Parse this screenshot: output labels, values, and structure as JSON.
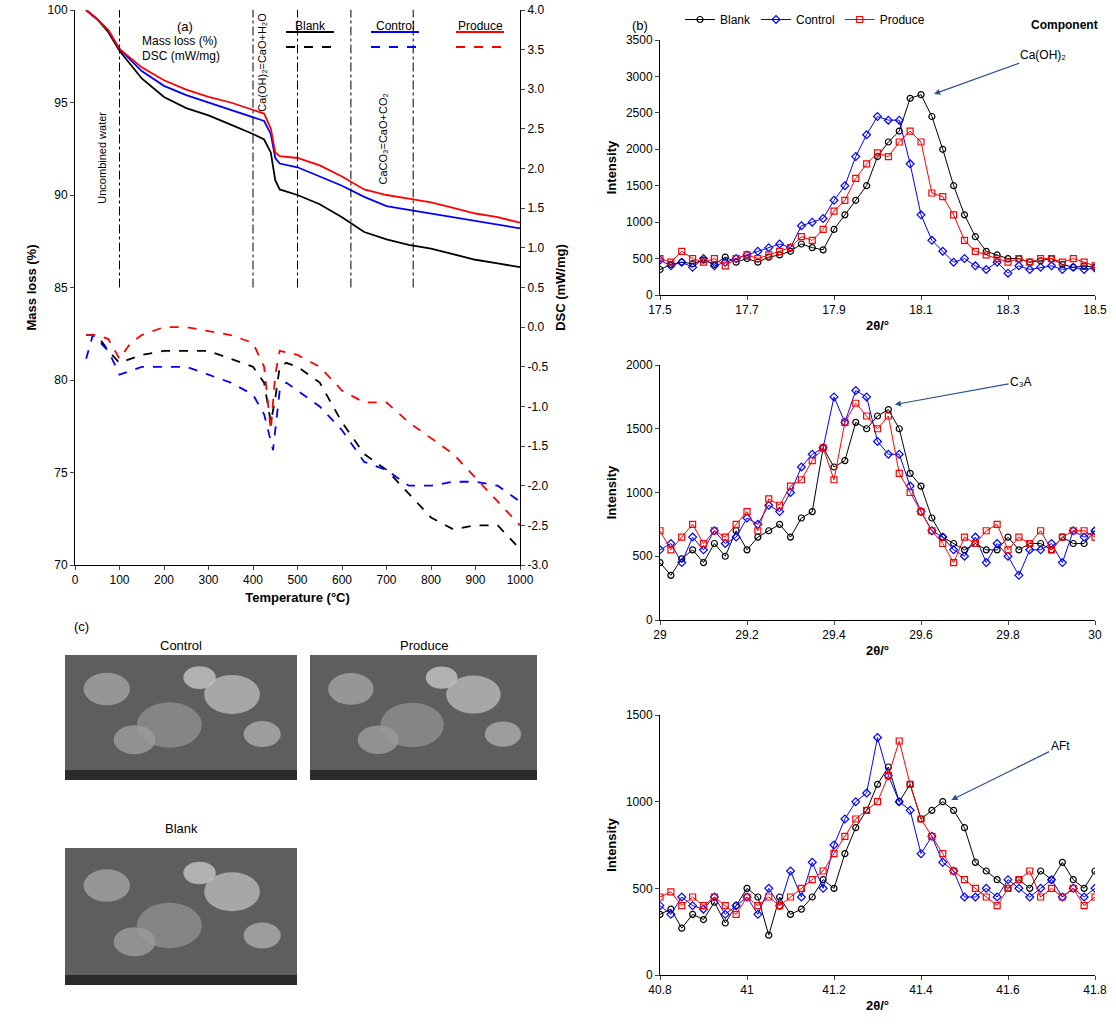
{
  "chart_data": [
    {
      "panel": "(a)",
      "type": "line",
      "xlabel": "Temperature (°C)",
      "ylabel": "Mass loss (%)",
      "y2label": "DSC (mW/mg)",
      "xlim": [
        0,
        1000
      ],
      "xticks": [
        0,
        100,
        200,
        300,
        400,
        500,
        600,
        700,
        800,
        900,
        1000
      ],
      "ylim": [
        70,
        100
      ],
      "yticks": [
        70,
        75,
        80,
        85,
        90,
        95,
        100
      ],
      "y2lim": [
        -3,
        4
      ],
      "y2ticks": [
        {
          "value": -3,
          "label": "-3.0"
        },
        -2.5,
        {
          "value": -2,
          "label": "-2.0"
        },
        -1.5,
        {
          "value": -1,
          "label": "-1.0"
        },
        -0.5,
        {
          "value": 0,
          "label": "0.0"
        },
        0.5,
        {
          "value": 1,
          "label": "1.0"
        },
        1.5,
        {
          "value": 2,
          "label": "2.0"
        },
        2.5,
        {
          "value": 3,
          "label": "3.0"
        },
        3.5,
        {
          "value": 4,
          "label": "4.0"
        }
      ],
      "grid": false,
      "legend_table": {
        "columns": [
          "Blank",
          "Control",
          "Produce"
        ],
        "rows": [
          "Mass loss (%)",
          "DSC (mW/mg)"
        ]
      },
      "vlines": [
        100,
        400,
        500,
        620,
        760
      ],
      "annotations": [
        {
          "text": "Uncombined water",
          "x": 60,
          "y": 92
        },
        {
          "text": "Ca(OH)₂=CaO+H₂O",
          "x": 420,
          "y": 97.2
        },
        {
          "text": "CaCO₃=CaO+CO₂",
          "x": 690,
          "y": 93
        }
      ],
      "series": [
        {
          "name": "Blank",
          "color": "#000000",
          "line_style": "solid",
          "x": [
            25,
            50,
            75,
            100,
            150,
            200,
            250,
            300,
            350,
            400,
            425,
            440,
            450,
            460,
            500,
            550,
            600,
            650,
            700,
            750,
            800,
            850,
            900,
            950,
            1000
          ],
          "values": [
            100,
            99.5,
            98.8,
            97.8,
            96.3,
            95.3,
            94.7,
            94.3,
            93.8,
            93.3,
            93.0,
            92.3,
            90.8,
            90.3,
            90.0,
            89.5,
            88.8,
            88.0,
            87.6,
            87.3,
            87.1,
            86.8,
            86.5,
            86.3,
            86.1
          ]
        },
        {
          "name": "Control",
          "color": "#0000ff",
          "line_style": "solid",
          "x": [
            25,
            50,
            75,
            100,
            150,
            200,
            250,
            300,
            350,
            400,
            425,
            440,
            450,
            460,
            500,
            550,
            600,
            650,
            700,
            750,
            800,
            850,
            900,
            950,
            1000
          ],
          "values": [
            100,
            99.5,
            98.9,
            97.9,
            96.7,
            95.9,
            95.4,
            95.0,
            94.6,
            94.2,
            94.0,
            93.3,
            92.0,
            91.7,
            91.5,
            91.0,
            90.5,
            89.9,
            89.4,
            89.2,
            89.0,
            88.8,
            88.6,
            88.4,
            88.2
          ]
        },
        {
          "name": "Produce",
          "color": "#ff0000",
          "line_style": "solid",
          "x": [
            25,
            50,
            75,
            100,
            150,
            200,
            250,
            300,
            350,
            400,
            425,
            440,
            450,
            460,
            500,
            550,
            600,
            650,
            700,
            750,
            800,
            850,
            900,
            950,
            1000
          ],
          "values": [
            100,
            99.5,
            98.9,
            97.9,
            96.9,
            96.2,
            95.7,
            95.3,
            95.0,
            94.6,
            94.4,
            93.6,
            92.3,
            92.1,
            92.0,
            91.6,
            91.0,
            90.3,
            90.0,
            89.8,
            89.6,
            89.3,
            89.0,
            88.8,
            88.5
          ]
        },
        {
          "name": "Blank",
          "color": "#000000",
          "line_style": "dashed",
          "axis": "y2",
          "x": [
            25,
            50,
            75,
            100,
            150,
            200,
            250,
            300,
            350,
            400,
            425,
            440,
            450,
            460,
            475,
            500,
            550,
            600,
            650,
            700,
            750,
            800,
            850,
            900,
            950,
            1000
          ],
          "values": [
            -0.1,
            -0.1,
            -0.3,
            -0.45,
            -0.35,
            -0.3,
            -0.3,
            -0.3,
            -0.4,
            -0.5,
            -0.7,
            -1.2,
            -0.9,
            -0.5,
            -0.45,
            -0.5,
            -0.7,
            -1.2,
            -1.6,
            -1.8,
            -2.1,
            -2.4,
            -2.55,
            -2.5,
            -2.5,
            -2.8
          ]
        },
        {
          "name": "Control",
          "color": "#0000ff",
          "line_style": "dashed",
          "axis": "y2",
          "x": [
            25,
            40,
            75,
            100,
            150,
            200,
            250,
            300,
            350,
            400,
            425,
            445,
            460,
            475,
            500,
            550,
            600,
            650,
            700,
            750,
            800,
            850,
            900,
            950,
            1000
          ],
          "values": [
            -0.4,
            -0.1,
            -0.3,
            -0.6,
            -0.5,
            -0.5,
            -0.5,
            -0.6,
            -0.7,
            -0.85,
            -1.1,
            -1.55,
            -0.8,
            -0.7,
            -0.8,
            -1.0,
            -1.3,
            -1.7,
            -1.8,
            -2.0,
            -2.0,
            -1.95,
            -1.95,
            -2.0,
            -2.2
          ]
        },
        {
          "name": "Produce",
          "color": "#ff0000",
          "line_style": "dashed",
          "axis": "y2",
          "x": [
            25,
            50,
            75,
            100,
            125,
            150,
            200,
            250,
            300,
            350,
            400,
            425,
            440,
            450,
            460,
            500,
            550,
            600,
            650,
            700,
            750,
            800,
            850,
            900,
            950,
            1000
          ],
          "values": [
            -0.1,
            -0.1,
            -0.15,
            -0.4,
            -0.2,
            -0.1,
            0.0,
            0.0,
            -0.05,
            -0.1,
            -0.2,
            -0.5,
            -1.3,
            -0.6,
            -0.3,
            -0.35,
            -0.5,
            -0.8,
            -0.95,
            -0.95,
            -1.2,
            -1.4,
            -1.6,
            -1.9,
            -2.2,
            -2.5
          ]
        }
      ]
    },
    {
      "panel": "(b)",
      "type": "line",
      "legend": "top",
      "legend_title": "Component",
      "xlabel": "2θ/°",
      "ylabel": "Intensity",
      "grid": false,
      "xlim": [
        17.5,
        18.5
      ],
      "xticks": [
        17.5,
        17.7,
        17.9,
        18.1,
        18.3,
        18.5
      ],
      "ylim": [
        0,
        3500
      ],
      "yticks": [
        0,
        500,
        1000,
        1500,
        2000,
        2500,
        3000,
        3500
      ],
      "peak_label": {
        "text": "Ca(OH)₂",
        "x": 18.38,
        "y": 3300,
        "arrow_x": 18.13,
        "arrow_y": 2760
      },
      "x": [
        17.5,
        17.525,
        17.55,
        17.575,
        17.6,
        17.625,
        17.65,
        17.675,
        17.7,
        17.725,
        17.75,
        17.775,
        17.8,
        17.825,
        17.85,
        17.875,
        17.9,
        17.925,
        17.95,
        17.975,
        18,
        18.025,
        18.05,
        18.075,
        18.1,
        18.125,
        18.15,
        18.175,
        18.2,
        18.225,
        18.25,
        18.275,
        18.3,
        18.325,
        18.35,
        18.375,
        18.4,
        18.425,
        18.45,
        18.475,
        18.5
      ],
      "series": [
        {
          "name": "Blank",
          "color": "#000000",
          "marker": "circle",
          "values": [
            350,
            420,
            450,
            430,
            480,
            420,
            520,
            450,
            500,
            450,
            520,
            550,
            600,
            700,
            650,
            620,
            900,
            1100,
            1300,
            1500,
            1900,
            2100,
            2250,
            2700,
            2750,
            2450,
            2000,
            1500,
            1100,
            800,
            600,
            550,
            500,
            500,
            450,
            470,
            500,
            420,
            380,
            400,
            380
          ]
        },
        {
          "name": "Control",
          "color": "#0000ff",
          "marker": "diamond",
          "values": [
            480,
            400,
            450,
            380,
            500,
            400,
            450,
            500,
            550,
            600,
            650,
            700,
            650,
            950,
            1000,
            1050,
            1300,
            1500,
            1900,
            2200,
            2450,
            2400,
            2400,
            1800,
            1100,
            750,
            600,
            450,
            500,
            400,
            350,
            450,
            300,
            400,
            350,
            380,
            400,
            350,
            380,
            350,
            370
          ]
        },
        {
          "name": "Produce",
          "color": "#ff0000",
          "marker": "square",
          "values": [
            500,
            450,
            600,
            500,
            450,
            500,
            400,
            500,
            550,
            500,
            550,
            600,
            650,
            800,
            750,
            900,
            1150,
            1300,
            1600,
            1800,
            1950,
            1900,
            2100,
            2250,
            2100,
            1400,
            1350,
            1100,
            750,
            600,
            550,
            500,
            450,
            500,
            450,
            500,
            500,
            450,
            500,
            450,
            400
          ]
        }
      ]
    },
    {
      "type": "line",
      "xlabel": "2θ/°",
      "ylabel": "Intensity",
      "grid": false,
      "xlim": [
        29,
        30
      ],
      "xticks": [
        29,
        29.2,
        29.4,
        29.6,
        29.8,
        30
      ],
      "ylim": [
        0,
        2000
      ],
      "yticks": [
        0,
        500,
        1000,
        1500,
        2000
      ],
      "peak_label": {
        "text": "C₃A",
        "x": 29.83,
        "y": 1870,
        "arrow_x": 29.54,
        "arrow_y": 1690
      },
      "x": [
        29,
        29.025,
        29.05,
        29.075,
        29.1,
        29.125,
        29.15,
        29.175,
        29.2,
        29.225,
        29.25,
        29.275,
        29.3,
        29.325,
        29.35,
        29.375,
        29.4,
        29.425,
        29.45,
        29.475,
        29.5,
        29.525,
        29.55,
        29.575,
        29.6,
        29.625,
        29.65,
        29.675,
        29.7,
        29.725,
        29.75,
        29.775,
        29.8,
        29.825,
        29.85,
        29.875,
        29.9,
        29.925,
        29.95,
        29.975,
        30
      ],
      "series": [
        {
          "name": "Blank",
          "color": "#000000",
          "marker": "circle",
          "values": [
            450,
            350,
            480,
            550,
            450,
            600,
            500,
            700,
            550,
            650,
            700,
            750,
            650,
            800,
            850,
            1350,
            1200,
            1250,
            1550,
            1500,
            1600,
            1650,
            1500,
            1150,
            1050,
            800,
            650,
            600,
            550,
            600,
            550,
            550,
            650,
            550,
            600,
            600,
            550,
            650,
            600,
            600,
            700
          ]
        },
        {
          "name": "Control",
          "color": "#0000ff",
          "marker": "diamond",
          "values": [
            550,
            600,
            450,
            650,
            550,
            700,
            600,
            650,
            800,
            750,
            900,
            850,
            1000,
            1200,
            1300,
            1350,
            1750,
            1550,
            1800,
            1750,
            1400,
            1300,
            1300,
            1050,
            850,
            700,
            650,
            550,
            500,
            650,
            450,
            600,
            500,
            350,
            550,
            550,
            600,
            450,
            700,
            650,
            700
          ]
        },
        {
          "name": "Produce",
          "color": "#ff0000",
          "marker": "square",
          "values": [
            700,
            550,
            650,
            750,
            600,
            700,
            650,
            750,
            850,
            700,
            950,
            900,
            1050,
            1100,
            1250,
            1350,
            1100,
            1550,
            1700,
            1600,
            1500,
            1600,
            1150,
            1000,
            850,
            700,
            600,
            450,
            650,
            600,
            700,
            750,
            550,
            650,
            600,
            700,
            550,
            650,
            700,
            700,
            650
          ]
        }
      ]
    },
    {
      "type": "line",
      "xlabel": "2θ/°",
      "ylabel": "Intensity",
      "grid": false,
      "xlim": [
        40.8,
        41.8
      ],
      "xticks": [
        40.8,
        41,
        41.2,
        41.4,
        41.6,
        41.8
      ],
      "ylim": [
        0,
        1500
      ],
      "yticks": [
        0,
        500,
        1000,
        1500
      ],
      "peak_label": {
        "text": "AFt",
        "x": 41.72,
        "y": 1320,
        "arrow_x": 41.47,
        "arrow_y": 1010
      },
      "x": [
        40.8,
        40.825,
        40.85,
        40.875,
        40.9,
        40.925,
        40.95,
        40.975,
        41,
        41.025,
        41.05,
        41.075,
        41.1,
        41.125,
        41.15,
        41.175,
        41.2,
        41.225,
        41.25,
        41.275,
        41.3,
        41.325,
        41.35,
        41.375,
        41.4,
        41.425,
        41.45,
        41.475,
        41.5,
        41.525,
        41.55,
        41.575,
        41.6,
        41.625,
        41.65,
        41.675,
        41.7,
        41.725,
        41.75,
        41.775,
        41.8
      ],
      "series": [
        {
          "name": "Blank",
          "color": "#000000",
          "marker": "circle",
          "values": [
            350,
            380,
            270,
            350,
            320,
            420,
            300,
            400,
            500,
            450,
            230,
            450,
            350,
            380,
            450,
            550,
            500,
            700,
            850,
            950,
            1100,
            1200,
            1000,
            1100,
            900,
            950,
            1000,
            950,
            850,
            650,
            600,
            550,
            500,
            550,
            500,
            600,
            550,
            650,
            550,
            500,
            600
          ]
        },
        {
          "name": "Control",
          "color": "#0000ff",
          "marker": "diamond",
          "values": [
            400,
            350,
            450,
            400,
            380,
            450,
            350,
            400,
            450,
            350,
            500,
            400,
            600,
            450,
            650,
            500,
            750,
            900,
            1000,
            1050,
            1370,
            1150,
            1000,
            950,
            700,
            800,
            650,
            600,
            450,
            450,
            500,
            450,
            550,
            500,
            450,
            500,
            550,
            450,
            500,
            450,
            500
          ]
        },
        {
          "name": "Produce",
          "color": "#ff0000",
          "marker": "square",
          "values": [
            450,
            480,
            400,
            450,
            400,
            450,
            400,
            350,
            450,
            400,
            450,
            400,
            450,
            500,
            550,
            600,
            700,
            800,
            900,
            950,
            1000,
            1150,
            1350,
            1100,
            900,
            800,
            700,
            600,
            550,
            500,
            450,
            400,
            500,
            550,
            600,
            450,
            500,
            450,
            500,
            400,
            450
          ]
        }
      ]
    }
  ],
  "panel_c": {
    "label": "(c)",
    "images": [
      {
        "title": "Control"
      },
      {
        "title": "Produce"
      },
      {
        "title": "Blank"
      }
    ]
  }
}
